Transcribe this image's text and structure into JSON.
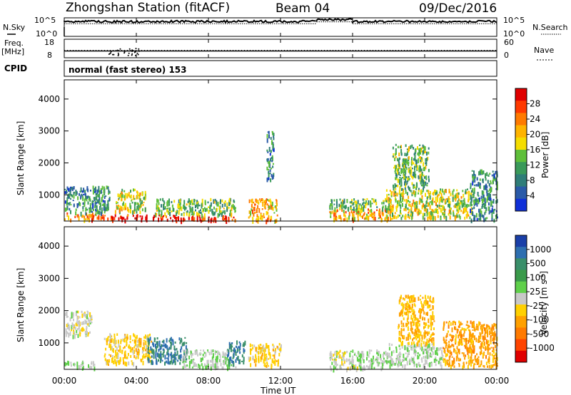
{
  "header": {
    "station": "Zhongshan Station (fitACF)",
    "beam": "Beam 04",
    "date": "09/Dec/2016"
  },
  "noise_panel": {
    "left_label": "N.Sky",
    "right_label": "N.Search",
    "ticks_left": [
      "10^5",
      "10^0"
    ],
    "ticks_right": [
      "10^5",
      "10^0"
    ]
  },
  "freq_panel": {
    "left_label_top": "Freq.",
    "left_label_bottom": "[MHz]",
    "right_label": "Nave",
    "ticks_left": [
      "18",
      "8"
    ],
    "ticks_right": [
      "60",
      "0"
    ]
  },
  "cpid": {
    "label": "CPID",
    "text": "normal (fast stereo) 153"
  },
  "axis": {
    "ylabel": "Slant Range [km]",
    "xlabel": "Time UT",
    "y_ticks": [
      "4000",
      "3000",
      "2000",
      "1000"
    ],
    "x_ticks": [
      "00:00",
      "04:00",
      "08:00",
      "12:00",
      "16:00",
      "20:00",
      "00:00"
    ]
  },
  "colorbars": {
    "power": {
      "title": "Power [dB]",
      "ticks": [
        "28",
        "24",
        "20",
        "16",
        "12",
        "8",
        "4"
      ],
      "colors": [
        "#e00000",
        "#ff3a00",
        "#ff7a00",
        "#ffb400",
        "#f5dd00",
        "#5fbf3a",
        "#3a9a5a",
        "#2f7d78",
        "#2a5aa8",
        "#1030d8"
      ]
    },
    "velocity": {
      "title_main": "Velocity [m s",
      "title_exp": "-1",
      "title_close": "]",
      "ticks": [
        "1000",
        "500",
        "100",
        "25",
        "-25",
        "-100",
        "-500",
        "-1000"
      ],
      "colors": [
        "#1a3fa8",
        "#2e6fb0",
        "#3a8f6a",
        "#3a9a4a",
        "#5fd04a",
        "#c8c8c8",
        "#ffd000",
        "#ffa000",
        "#ff7a00",
        "#ff4400",
        "#e00000"
      ]
    }
  },
  "chart_data": {
    "type": "heatmap",
    "time_range_ut_hours": [
      0,
      24
    ],
    "range_km": [
      180,
      4600
    ],
    "panels": [
      {
        "name": "Power",
        "unit": "dB",
        "scale": [
          0,
          30
        ],
        "echo_regions": [
          {
            "t": [
              0,
              1.7
            ],
            "r": [
              250,
              450
            ],
            "value": 24
          },
          {
            "t": [
              0,
              2.5
            ],
            "r": [
              450,
              1300
            ],
            "value": 8
          },
          {
            "t": [
              1.8,
              5.5
            ],
            "r": [
              250,
              400
            ],
            "value": 28
          },
          {
            "t": [
              2.8,
              4.5
            ],
            "r": [
              500,
              1200
            ],
            "value": 16
          },
          {
            "t": [
              5.6,
              9.5
            ],
            "r": [
              220,
              380
            ],
            "value": 29
          },
          {
            "t": [
              5.0,
              9.5
            ],
            "r": [
              400,
              900
            ],
            "value": 12
          },
          {
            "t": [
              10.2,
              11.8
            ],
            "r": [
              220,
              900
            ],
            "value": 20
          },
          {
            "t": [
              11.2,
              11.6
            ],
            "r": [
              1500,
              3000
            ],
            "value": 8
          },
          {
            "t": [
              14.7,
              18.2
            ],
            "r": [
              250,
              600
            ],
            "value": 20
          },
          {
            "t": [
              14.7,
              18.0
            ],
            "r": [
              600,
              900
            ],
            "value": 12
          },
          {
            "t": [
              17.8,
              22.6
            ],
            "r": [
              300,
              1200
            ],
            "value": 16
          },
          {
            "t": [
              18.2,
              20.2
            ],
            "r": [
              1200,
              2600
            ],
            "value": 12
          },
          {
            "t": [
              22.5,
              24
            ],
            "r": [
              250,
              1800
            ],
            "value": 8
          }
        ]
      },
      {
        "name": "Velocity",
        "unit": "m s-1",
        "scale": [
          -1000,
          1000
        ],
        "echo_regions": [
          {
            "t": [
              0,
              1.7
            ],
            "r": [
              250,
              450
            ],
            "value": 100
          },
          {
            "t": [
              0,
              1.5
            ],
            "r": [
              1200,
              2000
            ],
            "value": 0
          },
          {
            "t": [
              2.2,
              4.8
            ],
            "r": [
              400,
              1300
            ],
            "value": -200
          },
          {
            "t": [
              4.6,
              6.8
            ],
            "r": [
              400,
              1200
            ],
            "value": 700
          },
          {
            "t": [
              6.5,
              9.5
            ],
            "r": [
              250,
              800
            ],
            "value": 100
          },
          {
            "t": [
              9.0,
              10.0
            ],
            "r": [
              400,
              1100
            ],
            "value": 700
          },
          {
            "t": [
              10.2,
              12.0
            ],
            "r": [
              300,
              1000
            ],
            "value": -200
          },
          {
            "t": [
              14.7,
              16.3
            ],
            "r": [
              200,
              800
            ],
            "value": 0
          },
          {
            "t": [
              16.3,
              18.0
            ],
            "r": [
              250,
              800
            ],
            "value": 60
          },
          {
            "t": [
              18.0,
              21.0
            ],
            "r": [
              300,
              1000
            ],
            "value": 60
          },
          {
            "t": [
              18.5,
              20.5
            ],
            "r": [
              1000,
              2500
            ],
            "value": -300
          },
          {
            "t": [
              21.0,
              24
            ],
            "r": [
              300,
              1700
            ],
            "value": -400
          }
        ]
      }
    ],
    "noise_sky": [
      {
        "t": [
          0,
          14.0
        ],
        "level": "10^4"
      },
      {
        "t": [
          14.0,
          16.0
        ],
        "level": "10^4.5"
      },
      {
        "t": [
          16.0,
          24
        ],
        "level": "10^4"
      }
    ],
    "frequency_mhz": [
      {
        "t": [
          0,
          24
        ],
        "value": 12
      }
    ],
    "nave": [
      {
        "t": [
          0,
          24
        ],
        "value": 22
      }
    ]
  }
}
